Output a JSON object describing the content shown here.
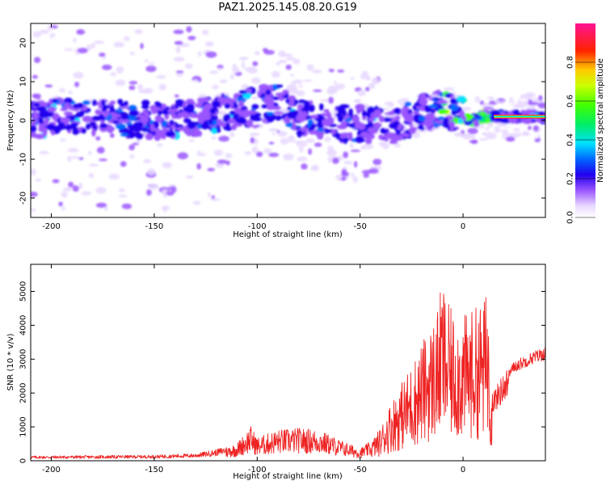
{
  "title": "PAZ1.2025.145.08.20.G19",
  "chart_data": [
    {
      "type": "heatmap",
      "xlabel": "Height of straight line (km)",
      "ylabel": "Frequency (Hz)",
      "xlim": [
        -210,
        40
      ],
      "ylim": [
        -25,
        25
      ],
      "x_ticks": [
        -200,
        -150,
        -100,
        -50,
        0
      ],
      "y_ticks": [
        -20,
        -10,
        0,
        10,
        20
      ],
      "colorbar": {
        "label": "Normalized spectral amplitude",
        "range": [
          0,
          1
        ],
        "ticks": [
          0.0,
          0.2,
          0.4,
          0.6,
          0.8
        ]
      },
      "ridge": {
        "description_points_x": [
          -210,
          -190,
          -170,
          -150,
          -130,
          -115,
          -100,
          -90,
          -80,
          -65,
          -50,
          -35,
          -20,
          -12,
          -5,
          0,
          5,
          10,
          15,
          20,
          30,
          40
        ],
        "description_points_y": [
          0,
          1,
          0.5,
          0,
          0.5,
          2,
          4,
          5,
          0.5,
          -0.5,
          -1,
          -1.5,
          2,
          3,
          2,
          1,
          0,
          1,
          1,
          1,
          1,
          1
        ]
      }
    },
    {
      "type": "line",
      "xlabel": "Height of straight line (km)",
      "ylabel": "SNR (10 * v/v)",
      "xlim": [
        -210,
        40
      ],
      "ylim": [
        0,
        5800
      ],
      "x_ticks": [
        -200,
        -150,
        -100,
        -50,
        0
      ],
      "y_ticks": [
        0,
        1000,
        2000,
        3000,
        4000,
        5000
      ],
      "series": [
        {
          "color": "#ee2222",
          "envelope_x": [
            -210,
            -180,
            -150,
            -130,
            -120,
            -110,
            -103,
            -100,
            -95,
            -90,
            -80,
            -70,
            -60,
            -50,
            -45,
            -40,
            -35,
            -30,
            -25,
            -20,
            -15,
            -12,
            -10,
            -8,
            -5,
            0,
            5,
            10,
            12,
            14,
            16,
            20,
            25,
            30,
            35,
            40
          ],
          "envelope_y": [
            120,
            130,
            140,
            180,
            280,
            450,
            900,
            600,
            700,
            800,
            850,
            800,
            550,
            320,
            500,
            900,
            1600,
            2100,
            2600,
            3200,
            3700,
            4200,
            4900,
            4300,
            4000,
            3900,
            4100,
            4300,
            4700,
            2000,
            2100,
            2500,
            2900,
            3050,
            3200,
            3300
          ]
        }
      ]
    }
  ]
}
